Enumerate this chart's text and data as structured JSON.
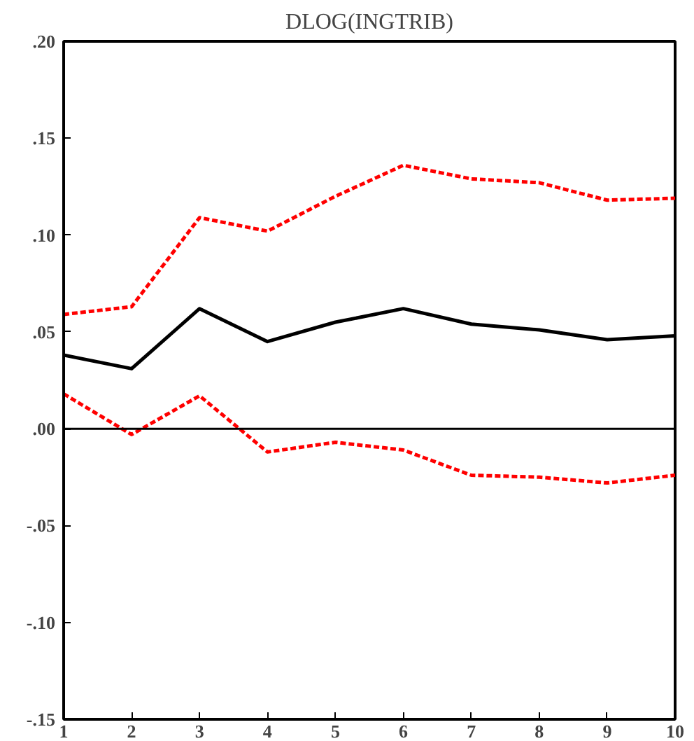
{
  "chart_data": {
    "type": "line",
    "title": "DLOG(INGTRIB)",
    "x": [
      1,
      2,
      3,
      4,
      5,
      6,
      7,
      8,
      9,
      10
    ],
    "series": [
      {
        "color": "#000000",
        "line_style": "solid",
        "values": [
          0.038,
          0.031,
          0.062,
          0.045,
          0.055,
          0.062,
          0.054,
          0.051,
          0.046,
          0.048
        ]
      },
      {
        "color": "#ff0000",
        "line_style": "dashed",
        "values": [
          0.059,
          0.063,
          0.109,
          0.102,
          0.12,
          0.136,
          0.129,
          0.127,
          0.118,
          0.119
        ]
      },
      {
        "color": "#ff0000",
        "line_style": "dashed",
        "values": [
          0.018,
          -0.003,
          0.017,
          -0.012,
          -0.007,
          -0.011,
          -0.024,
          -0.025,
          -0.028,
          -0.024
        ]
      }
    ],
    "xlim": [
      1,
      10
    ],
    "xticks": [
      1,
      2,
      3,
      4,
      5,
      6,
      7,
      8,
      9,
      10
    ],
    "ylim": [
      -0.15,
      0.2
    ],
    "yticks": [
      {
        "value": -0.15,
        "label": "-.15"
      },
      {
        "value": -0.1,
        "label": "-.10"
      },
      {
        "value": -0.05,
        "label": "-.05"
      },
      {
        "value": 0,
        "label": ".00"
      },
      {
        "value": 0.05,
        "label": ".05"
      },
      {
        "value": 0.1,
        "label": ".10"
      },
      {
        "value": 0.15,
        "label": ".15"
      },
      {
        "value": 0.2,
        "label": ".20"
      }
    ],
    "ref_lines": [
      {
        "axis": "y",
        "value": 0,
        "color": "#000000"
      }
    ],
    "grid": false
  }
}
